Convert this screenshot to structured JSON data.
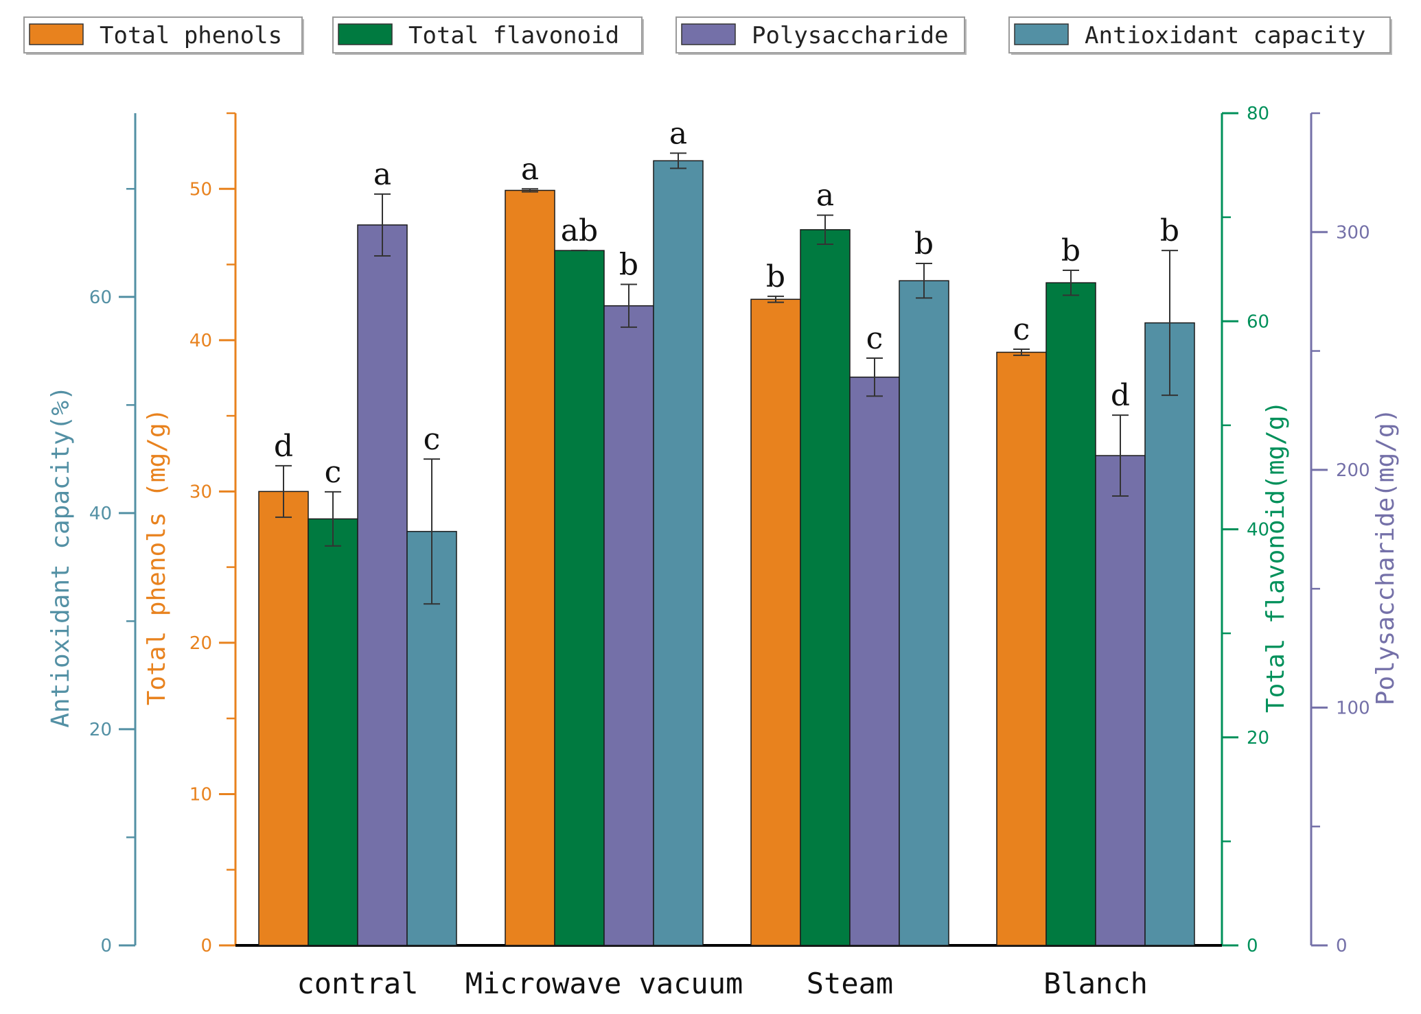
{
  "chart_data": {
    "type": "bar",
    "title": "",
    "categories": [
      "contral",
      "Microwave vacuum",
      "Steam",
      "Blanch"
    ],
    "series": [
      {
        "name": "Total phenols",
        "axis": "phenols",
        "color": "#E8821E",
        "values": [
          30.0,
          49.9,
          42.7,
          39.2
        ],
        "errors": [
          1.7,
          0.1,
          0.2,
          0.2
        ],
        "letters": [
          "d",
          "a",
          "b",
          "c"
        ]
      },
      {
        "name": "Total flavonoid",
        "axis": "flavonoid",
        "color": "#007A40",
        "values": [
          41.0,
          66.8,
          68.8,
          63.7
        ],
        "errors": [
          2.6,
          0.0,
          1.4,
          1.2
        ],
        "letters": [
          "c",
          "ab",
          "a",
          "b"
        ]
      },
      {
        "name": "Polysaccharide",
        "axis": "polysaccharide",
        "color": "#7470A8",
        "values": [
          303,
          269,
          239,
          206
        ],
        "errors": [
          13,
          9,
          8,
          17
        ],
        "letters": [
          "a",
          "b",
          "c",
          "d"
        ]
      },
      {
        "name": "Antioxidant capacity",
        "axis": "antioxidant",
        "color": "#5390A4",
        "values": [
          38.3,
          72.6,
          61.5,
          57.6
        ],
        "errors": [
          6.7,
          0.7,
          1.6,
          6.7
        ],
        "letters": [
          "c",
          "a",
          "b",
          "b"
        ]
      }
    ],
    "axes": {
      "antioxidant": {
        "label": "Antioxidant capacity(%)",
        "side": "left-outer",
        "color": "#5390A4",
        "ylim": [
          0,
          77
        ],
        "ticks": [
          0,
          20,
          40,
          60
        ],
        "tick_labels": [
          "0",
          "20",
          "40",
          "60"
        ]
      },
      "phenols": {
        "label": "Total phenols (mg/g)",
        "side": "left-inner",
        "color": "#E8821E",
        "ylim": [
          0,
          55
        ],
        "ticks": [
          0,
          10,
          20,
          30,
          40,
          50
        ],
        "tick_labels": [
          "0",
          "10",
          "20",
          "30",
          "40",
          "50"
        ]
      },
      "flavonoid": {
        "label": "Total flavonoid(mg/g)",
        "side": "right-inner",
        "color": "#00905A",
        "ylim": [
          0,
          80
        ],
        "ticks": [
          0,
          20,
          40,
          60,
          80
        ],
        "tick_labels": [
          "0",
          "20",
          "40",
          "60",
          "80"
        ]
      },
      "polysaccharide": {
        "label": "Polysaccharide(mg/g)",
        "side": "right-outer",
        "color": "#7470A8",
        "ylim": [
          0,
          350
        ],
        "ticks": [
          0,
          100,
          200,
          300
        ],
        "tick_labels": [
          "0",
          "100",
          "200",
          "300"
        ]
      }
    },
    "legend_position": "top",
    "grid": false
  }
}
